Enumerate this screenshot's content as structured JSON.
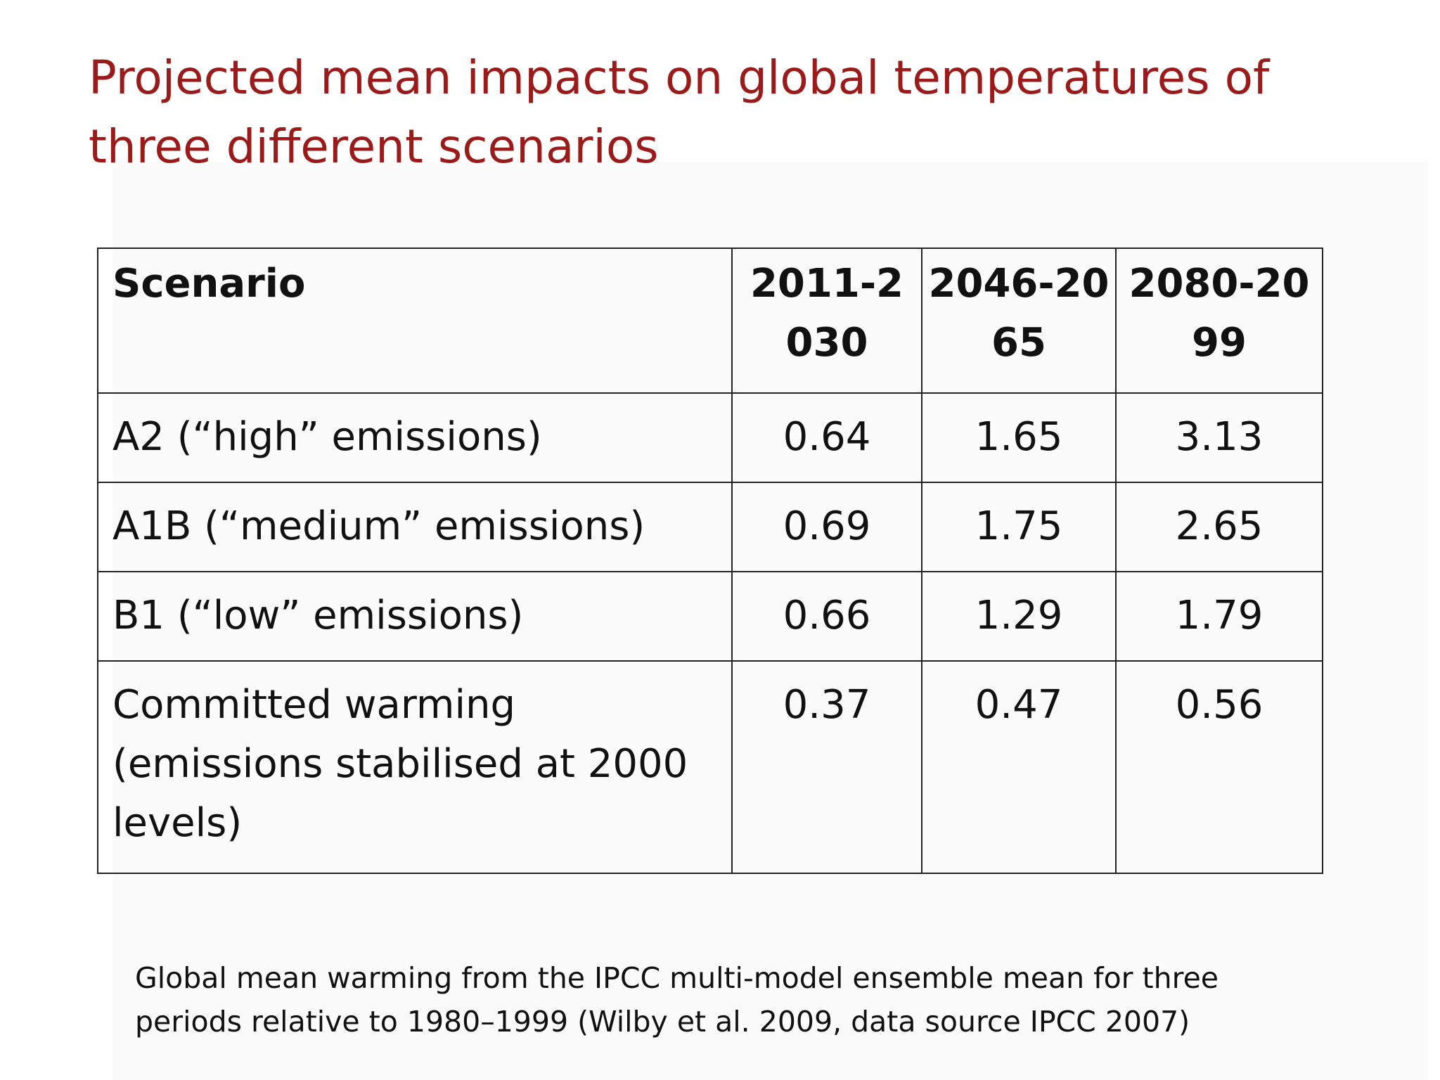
{
  "slide": {
    "title_lines": [
      "Projected mean impacts on global temperatures of",
      "three different scenarios"
    ],
    "title_color": "#9b1b1b"
  },
  "table": {
    "header": {
      "scenario": "Scenario",
      "periods": [
        [
          "2011-2",
          "030"
        ],
        [
          "2046-20",
          "65"
        ],
        [
          "2080-20",
          "99"
        ]
      ]
    },
    "rows": [
      {
        "label_lines": [
          "A2 (“high” emissions)"
        ],
        "values": [
          "0.64",
          "1.65",
          "3.13"
        ]
      },
      {
        "label_lines": [
          "A1B (“medium” emissions)"
        ],
        "values": [
          "0.69",
          "1.75",
          "2.65"
        ]
      },
      {
        "label_lines": [
          "B1 (“low” emissions)"
        ],
        "values": [
          "0.66",
          "1.29",
          "1.79"
        ]
      },
      {
        "label_lines": [
          "Committed warming",
          "(emissions stabilised at 2000",
          "levels)"
        ],
        "values": [
          "0.37",
          "0.47",
          "0.56"
        ]
      }
    ]
  },
  "caption_lines": [
    "Global mean warming from the IPCC multi-model ensemble mean for three",
    "periods relative to 1980–1999 (Wilby et al. 2009, data source IPCC 2007)"
  ]
}
